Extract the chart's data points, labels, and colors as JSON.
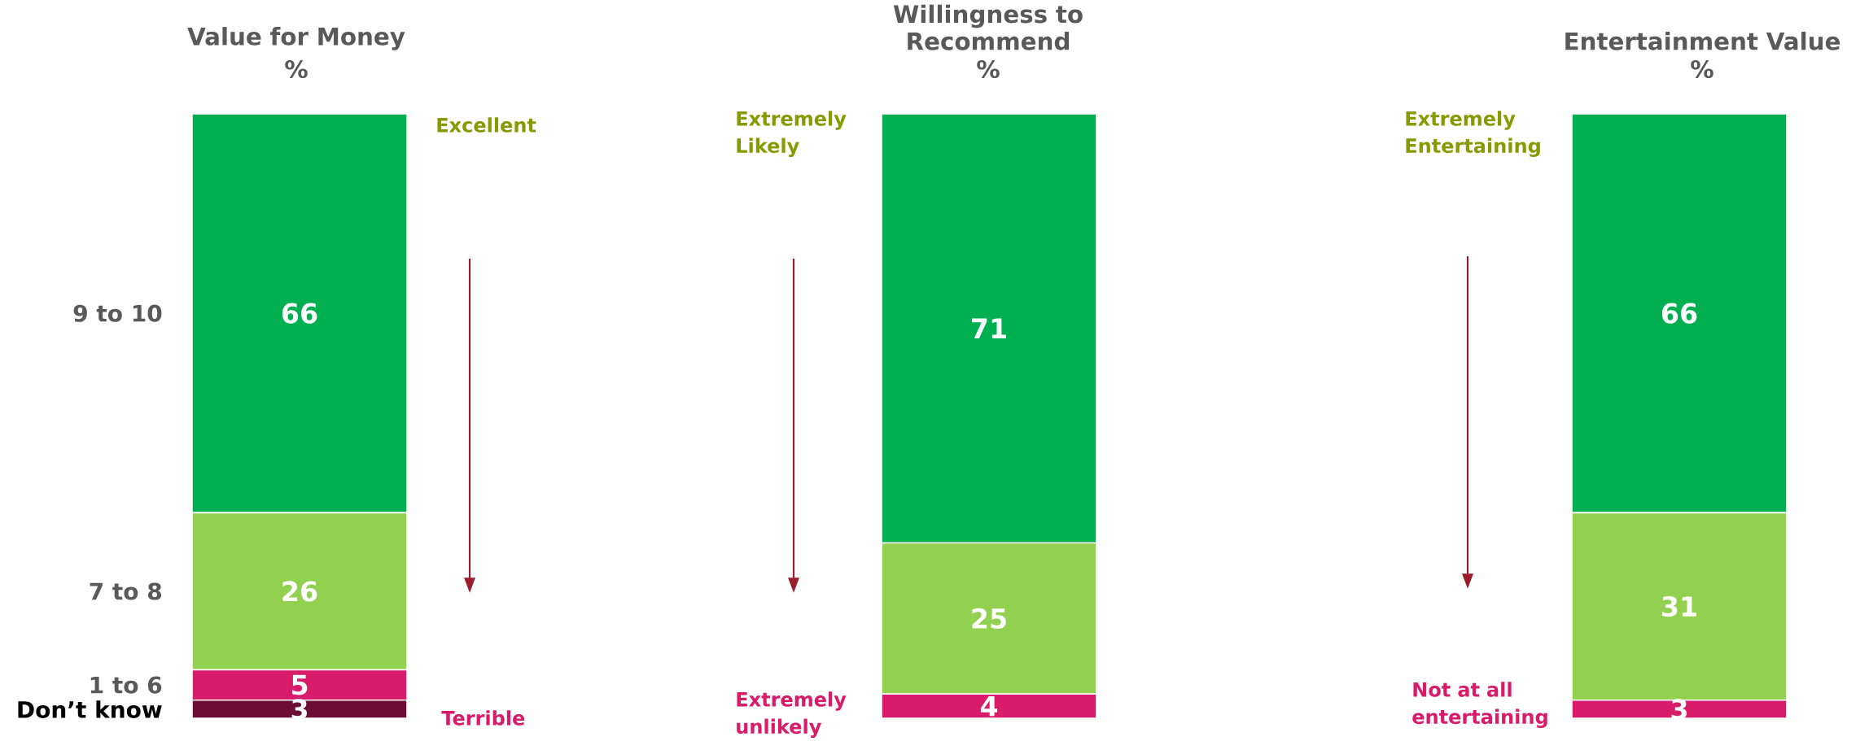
{
  "chart_data": [
    {
      "type": "bar",
      "stacked": true,
      "title": "Value for Money",
      "subtitle": "%",
      "categories": [
        null
      ],
      "data_labels": true,
      "series": [
        {
          "name": "Don’t know",
          "color": "#6b0d37",
          "values": [
            3
          ]
        },
        {
          "name": "1 to 6",
          "color": "#d81b6a",
          "values": [
            5
          ]
        },
        {
          "name": "7 to 8",
          "color": "#92d050",
          "values": [
            26
          ]
        },
        {
          "name": "9 to 10",
          "color": "#00b050",
          "values": [
            66
          ]
        }
      ],
      "annotations": [
        "Excellent",
        "Terrible"
      ]
    },
    {
      "type": "bar",
      "stacked": true,
      "title": "Willingness to Recommend",
      "subtitle": "%",
      "categories": [
        null
      ],
      "data_labels": true,
      "series": [
        {
          "color": "#d81b6a",
          "values": [
            4
          ]
        },
        {
          "color": "#92d050",
          "values": [
            25
          ]
        },
        {
          "color": "#00b050",
          "values": [
            71
          ]
        }
      ],
      "annotations": [
        "Extremely Likely",
        "Extremely unlikely"
      ]
    },
    {
      "type": "bar",
      "stacked": true,
      "title": "Entertainment Value",
      "subtitle": "%",
      "categories": [
        null
      ],
      "data_labels": true,
      "series": [
        {
          "color": "#d81b6a",
          "values": [
            3
          ]
        },
        {
          "color": "#92d050",
          "values": [
            31
          ]
        },
        {
          "color": "#00b050",
          "values": [
            66
          ]
        }
      ],
      "annotations": [
        "Extremely Entertaining",
        "Not at all entertaining"
      ]
    }
  ]
}
